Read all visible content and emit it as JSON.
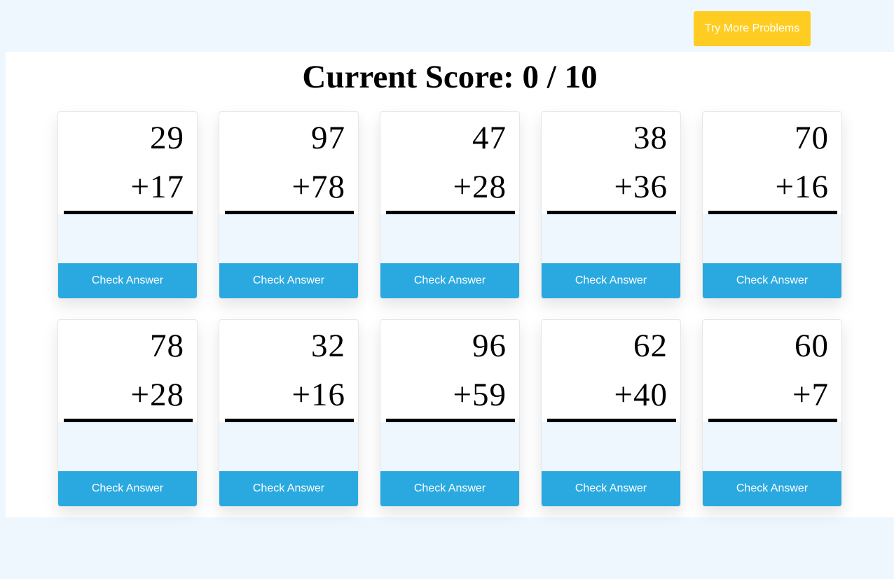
{
  "header": {
    "try_more_label": "Try More Problems"
  },
  "score": {
    "text": "Current Score: 0 / 10"
  },
  "problems": [
    {
      "top": "29",
      "bottom": "+17",
      "check_label": "Check Answer"
    },
    {
      "top": "97",
      "bottom": "+78",
      "check_label": "Check Answer"
    },
    {
      "top": "47",
      "bottom": "+28",
      "check_label": "Check Answer"
    },
    {
      "top": "38",
      "bottom": "+36",
      "check_label": "Check Answer"
    },
    {
      "top": "70",
      "bottom": "+16",
      "check_label": "Check Answer"
    },
    {
      "top": "78",
      "bottom": "+28",
      "check_label": "Check Answer"
    },
    {
      "top": "32",
      "bottom": "+16",
      "check_label": "Check Answer"
    },
    {
      "top": "96",
      "bottom": "+59",
      "check_label": "Check Answer"
    },
    {
      "top": "62",
      "bottom": "+40",
      "check_label": "Check Answer"
    },
    {
      "top": "60",
      "bottom": "+7",
      "check_label": "Check Answer"
    }
  ],
  "colors": {
    "page_background": "#eff7fe",
    "try_more_button": "#ffcd22",
    "check_button": "#2aa9e0"
  }
}
